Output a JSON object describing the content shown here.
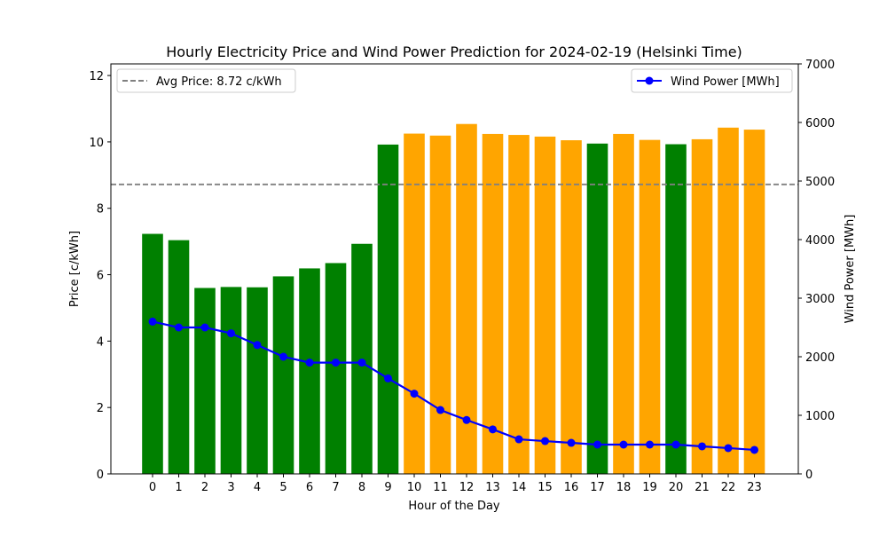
{
  "chart_data": {
    "type": "bar",
    "title": "Hourly Electricity Price and Wind Power Prediction for 2024-02-19 (Helsinki Time)",
    "xlabel": "Hour of the Day",
    "ylabel": "Price [c/kWh]",
    "y2label": "Wind Power [MWh]",
    "categories": [
      "0",
      "1",
      "2",
      "3",
      "4",
      "5",
      "6",
      "7",
      "8",
      "9",
      "10",
      "11",
      "12",
      "13",
      "14",
      "15",
      "16",
      "17",
      "18",
      "19",
      "20",
      "21",
      "22",
      "23"
    ],
    "ylim": [
      0,
      12.35
    ],
    "y2lim": [
      0,
      7000
    ],
    "yticks": [
      0,
      2,
      4,
      6,
      8,
      10,
      12
    ],
    "y2ticks": [
      0,
      1000,
      2000,
      3000,
      4000,
      5000,
      6000,
      7000
    ],
    "grid": false,
    "series": [
      {
        "type": "bar",
        "axis": "left",
        "values": [
          7.23,
          7.04,
          5.6,
          5.63,
          5.62,
          5.95,
          6.19,
          6.35,
          6.93,
          9.92,
          10.25,
          10.19,
          10.54,
          10.24,
          10.21,
          10.16,
          10.05,
          9.95,
          10.24,
          10.06,
          9.93,
          10.08,
          10.43,
          10.37
        ],
        "colors": [
          "green",
          "green",
          "green",
          "green",
          "green",
          "green",
          "green",
          "green",
          "green",
          "green",
          "orange",
          "orange",
          "orange",
          "orange",
          "orange",
          "orange",
          "orange",
          "green",
          "orange",
          "orange",
          "green",
          "orange",
          "orange",
          "orange"
        ]
      },
      {
        "type": "line",
        "axis": "right",
        "name": "Wind Power [MWh]",
        "color": "#0000ff",
        "values": [
          2600,
          2500,
          2500,
          2400,
          2200,
          2000,
          1900,
          1900,
          1900,
          1630,
          1370,
          1090,
          920,
          760,
          590,
          560,
          530,
          500,
          500,
          500,
          500,
          470,
          440,
          410
        ]
      }
    ],
    "reference_line": {
      "axis": "left",
      "value": 8.72,
      "label": "Avg Price: 8.72 c/kWh",
      "color": "#808080",
      "style": "dashed"
    },
    "legends": [
      {
        "placement": "top-left",
        "entry": "Avg Price: 8.72 c/kWh"
      },
      {
        "placement": "top-right",
        "entry": "Wind Power [MWh]"
      }
    ]
  }
}
